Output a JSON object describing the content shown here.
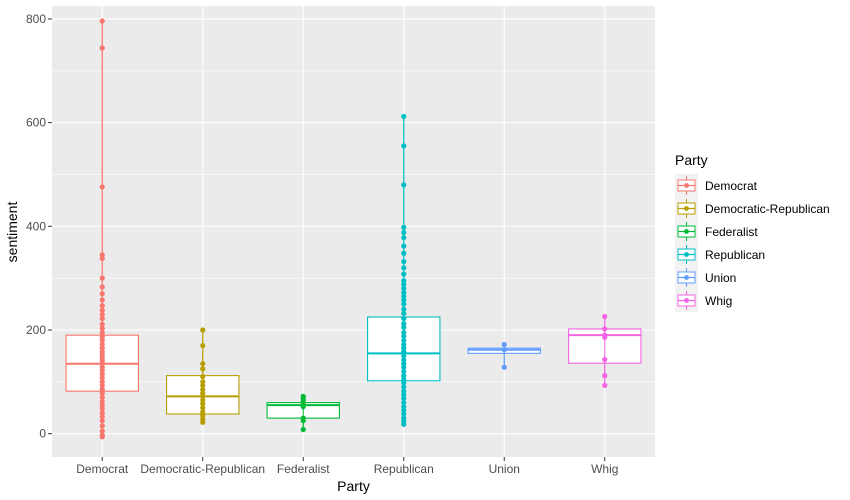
{
  "chart_data": {
    "type": "box",
    "xlabel": "Party",
    "ylabel": "sentiment",
    "ylim": [
      -45,
      825
    ],
    "yticks": [
      0,
      200,
      400,
      600,
      800
    ],
    "grid": true,
    "legend": {
      "title": "Party",
      "position": "right"
    },
    "categories": [
      "Democrat",
      "Democratic-Republican",
      "Federalist",
      "Republican",
      "Union",
      "Whig"
    ],
    "series": [
      {
        "name": "Democrat",
        "color": "#F8766D",
        "box": {
          "q1": 82,
          "median": 135,
          "q3": 190
        },
        "points": [
          796,
          744,
          476,
          345,
          338,
          300,
          283,
          270,
          258,
          247,
          238,
          230,
          222,
          211,
          203,
          195,
          187,
          180,
          172,
          165,
          158,
          152,
          146,
          140,
          135,
          128,
          122,
          115,
          108,
          100,
          93,
          86,
          78,
          70,
          62,
          55,
          48,
          40,
          33,
          25,
          15,
          5,
          -3,
          -6
        ]
      },
      {
        "name": "Democratic-Republican",
        "color": "#B79F00",
        "box": {
          "q1": 38,
          "median": 72,
          "q3": 112
        },
        "points": [
          200,
          170,
          135,
          125,
          110,
          100,
          93,
          85,
          78,
          72,
          65,
          58,
          50,
          42,
          35,
          28,
          22
        ]
      },
      {
        "name": "Federalist",
        "color": "#00BA38",
        "box": {
          "q1": 30,
          "median": 55,
          "q3": 60
        },
        "points": [
          72,
          68,
          64,
          60,
          56,
          52,
          30,
          25,
          8
        ]
      },
      {
        "name": "Republican",
        "color": "#00BFC4",
        "box": {
          "q1": 102,
          "median": 155,
          "q3": 225
        },
        "points": [
          612,
          555,
          480,
          398,
          388,
          378,
          362,
          348,
          332,
          320,
          308,
          295,
          288,
          280,
          272,
          265,
          258,
          250,
          240,
          232,
          222,
          212,
          205,
          195,
          188,
          180,
          172,
          165,
          158,
          150,
          142,
          135,
          128,
          120,
          112,
          105,
          98,
          90,
          82,
          75,
          68,
          60,
          52,
          45,
          38,
          30,
          24,
          18
        ]
      },
      {
        "name": "Union",
        "color": "#619CFF",
        "box": {
          "q1": 155,
          "median": 162,
          "q3": 165
        },
        "points": [
          172,
          162,
          128
        ]
      },
      {
        "name": "Whig",
        "color": "#F564E3",
        "box": {
          "q1": 136,
          "median": 190,
          "q3": 202
        },
        "points": [
          226,
          202,
          190,
          186,
          143,
          112,
          93
        ]
      }
    ]
  }
}
